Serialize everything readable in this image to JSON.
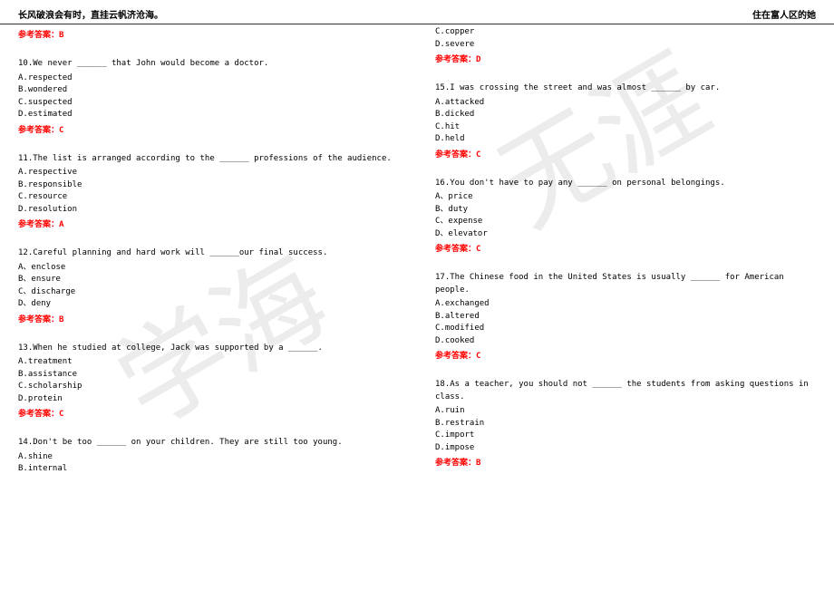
{
  "header": {
    "left": "长风破浪会有时，直挂云帆济沧海。",
    "right": "住在富人区的她"
  },
  "watermark": {
    "text1": "学海",
    "text2": "无涯"
  },
  "colors": {
    "answer_color": "#ff0000",
    "text_color": "#000000",
    "background": "#ffffff",
    "watermark_color": "rgba(200,200,200,0.35)"
  },
  "left_column": {
    "top_answer": "参考答案：B",
    "q10": {
      "stem": "10.We never ______ that John would become a doctor.",
      "a": "A.respected",
      "b": "B.wondered",
      "c": "C.suspected",
      "d": "D.estimated",
      "answer": "参考答案：C"
    },
    "q11": {
      "stem": "11.The list is arranged according to the ______ professions of the audience.",
      "a": "A.respective",
      "b": "B.responsible",
      "c": "C.resource",
      "d": "D.resolution",
      "answer": "参考答案：A"
    },
    "q12": {
      "stem": "12.Careful planning and hard work will ______our final success.",
      "a": "A、enclose",
      "b": "B、ensure",
      "c": "C、discharge",
      "d": "D、deny",
      "answer": "参考答案：B"
    },
    "q13": {
      "stem": "13.When he studied at college, Jack was supported by a ______.",
      "a": "A.treatment",
      "b": "B.assistance",
      "c": "C.scholarship",
      "d": "D.protein",
      "answer": "参考答案：C"
    },
    "q14": {
      "stem": "14.Don't be too ______ on your children. They are still too young.",
      "a": "A.shine",
      "b": "B.internal"
    }
  },
  "right_column": {
    "q14_cont": {
      "c": "C.copper",
      "d": "D.severe",
      "answer": "参考答案：D"
    },
    "q15": {
      "stem": "15.I was crossing the street and was almost ______ by car.",
      "a": "A.attacked",
      "b": "B.dicked",
      "c": "C.hit",
      "d": "D.held",
      "answer": "参考答案：C"
    },
    "q16": {
      "stem": "16.You don't have to pay any ______ on personal belongings.",
      "a": "A、price",
      "b": "B、duty",
      "c": "C、expense",
      "d": "D、elevator",
      "answer": "参考答案：C"
    },
    "q17": {
      "stem": "17.The Chinese food in the United States is usually ______ for American people.",
      "a": "A.exchanged",
      "b": "B.altered",
      "c": "C.modified",
      "d": "D.cooked",
      "answer": "参考答案：C"
    },
    "q18": {
      "stem": "18.As a teacher, you should not ______ the students from asking questions in class.",
      "a": "A.ruin",
      "b": "B.restrain",
      "c": "C.import",
      "d": "D.impose",
      "answer": "参考答案：B"
    }
  }
}
